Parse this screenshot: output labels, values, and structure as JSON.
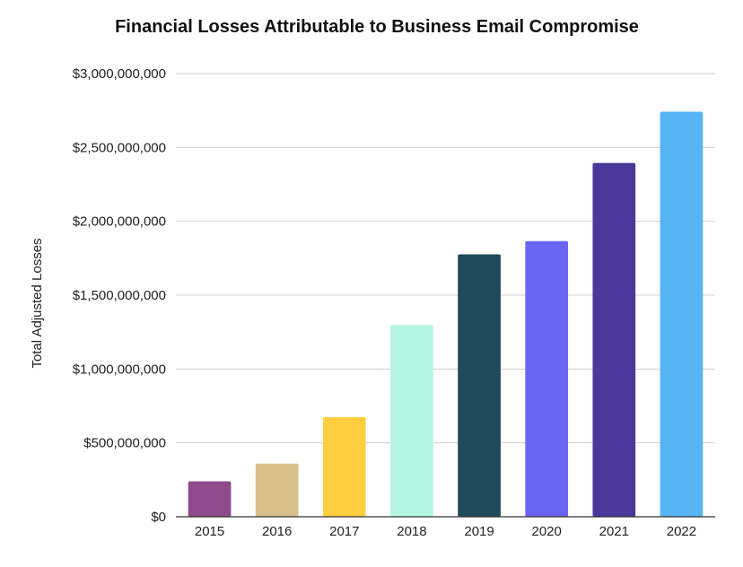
{
  "chart_data": {
    "type": "bar",
    "title": "Financial Losses Attributable to Business Email Compromise",
    "xlabel": "",
    "ylabel": "Total Adjusted Losses",
    "categories": [
      "2015",
      "2016",
      "2017",
      "2018",
      "2019",
      "2020",
      "2021",
      "2022"
    ],
    "values": [
      240000000,
      360000000,
      675000000,
      1298000000,
      1776000000,
      1866000000,
      2395000000,
      2742000000
    ],
    "colors": [
      "#8e4a8a",
      "#d8c08a",
      "#ffcf40",
      "#b4f5e1",
      "#20495a",
      "#6b66f2",
      "#4a389a",
      "#56b4f5"
    ],
    "ylim": [
      0,
      3000000000
    ],
    "yticks": [
      0,
      500000000,
      1000000000,
      1500000000,
      2000000000,
      2500000000,
      3000000000
    ],
    "ytick_labels": [
      "$0",
      "$500,000,000",
      "$1,000,000,000",
      "$1,500,000,000",
      "$2,000,000,000",
      "$2,500,000,000",
      "$3,000,000,000"
    ],
    "grid": true,
    "legend": "none"
  }
}
